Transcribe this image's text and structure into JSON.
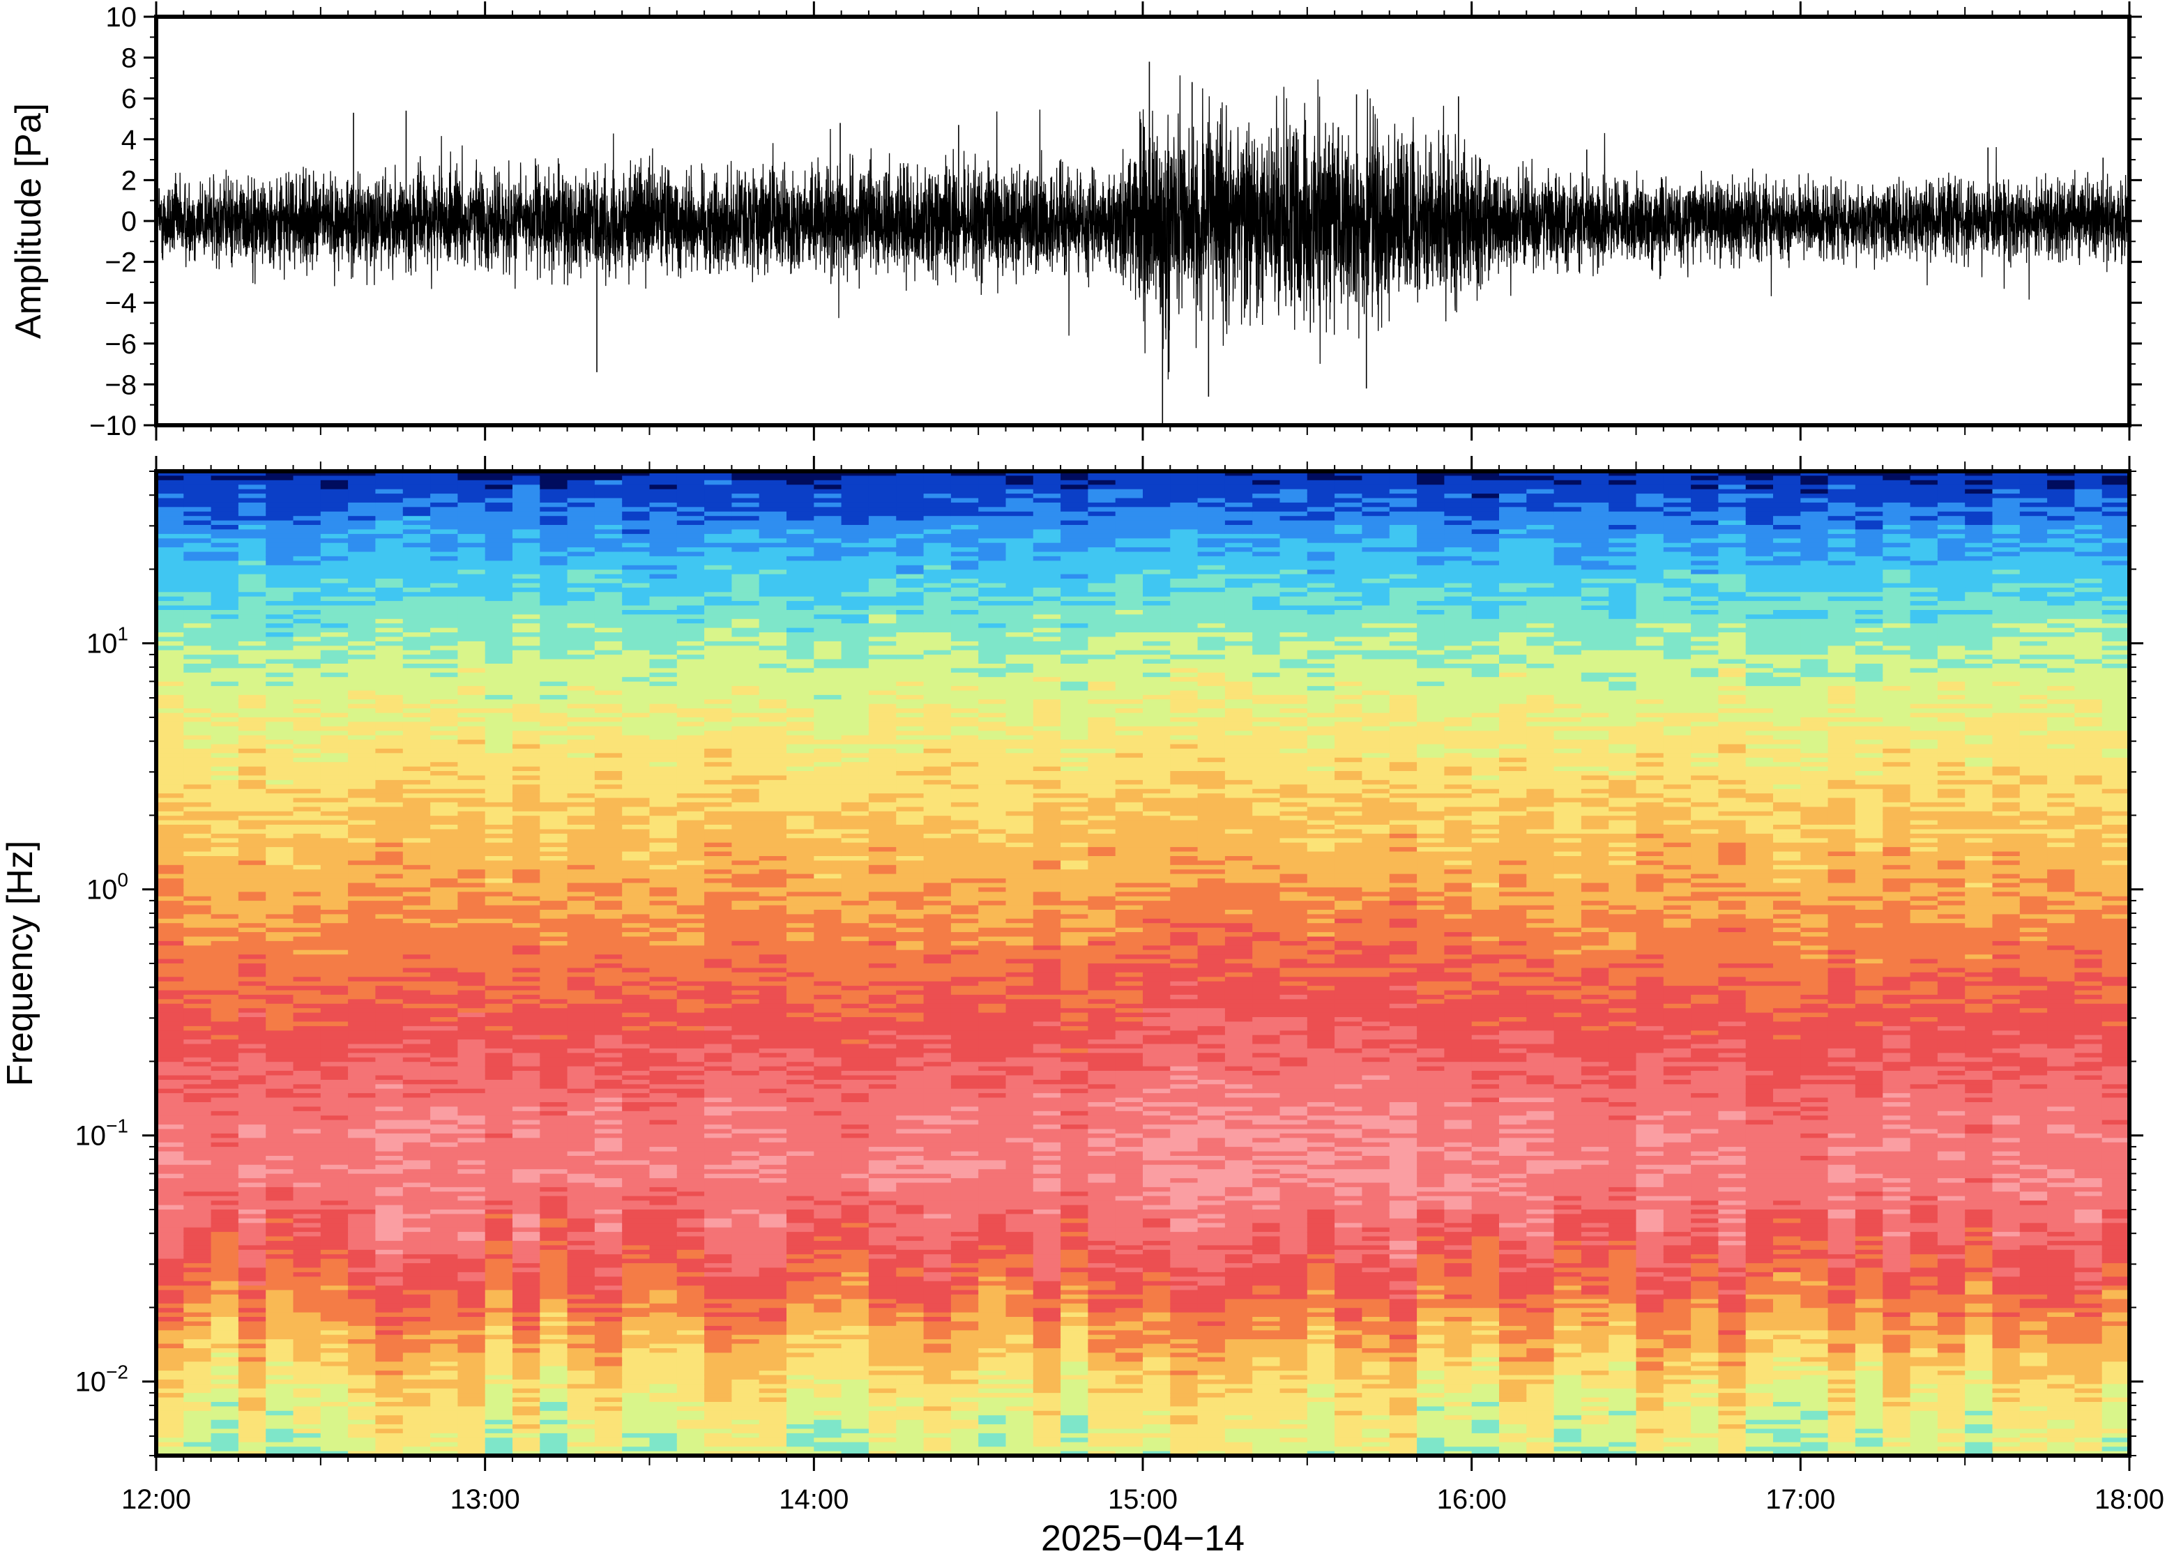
{
  "chart_data": [
    {
      "type": "line",
      "ylabel": "Amplitude [Pa]",
      "ylim": [
        -10,
        10
      ],
      "yticks": [
        {
          "value": 10,
          "label": "10"
        },
        {
          "value": 8,
          "label": "8"
        },
        {
          "value": 6,
          "label": "6"
        },
        {
          "value": 4,
          "label": "4"
        },
        {
          "value": 2,
          "label": "2"
        },
        {
          "value": 0,
          "label": "0"
        },
        {
          "value": -2,
          "label": "−2"
        },
        {
          "value": -4,
          "label": "−4"
        },
        {
          "value": -6,
          "label": "−6"
        },
        {
          "value": -8,
          "label": "−8"
        },
        {
          "value": -10,
          "label": "−10"
        }
      ],
      "x_range_hours": [
        12,
        18
      ],
      "series_color": "#000000",
      "envelope": {
        "hours": [
          12.0,
          12.5,
          13.0,
          13.5,
          14.0,
          14.5,
          14.95,
          15.0,
          15.25,
          15.5,
          15.75,
          16.0,
          16.1,
          16.5,
          17.0,
          17.5,
          18.0
        ],
        "amplitude": [
          1.3,
          1.4,
          1.5,
          1.6,
          1.6,
          1.7,
          1.7,
          3.3,
          3.0,
          3.1,
          3.0,
          2.4,
          1.4,
          1.3,
          1.2,
          1.2,
          1.3
        ]
      },
      "peaks": [
        {
          "hour": 12.6,
          "value": 5.3
        },
        {
          "hour": 12.76,
          "value": 5.4
        },
        {
          "hour": 13.34,
          "value": -7.4
        },
        {
          "hour": 14.08,
          "value": 4.8
        },
        {
          "hour": 14.44,
          "value": 4.7
        },
        {
          "hour": 15.02,
          "value": 7.8
        },
        {
          "hour": 15.06,
          "value": -9.9
        },
        {
          "hour": 15.15,
          "value": 6.8
        },
        {
          "hour": 15.2,
          "value": -8.6
        },
        {
          "hour": 15.65,
          "value": 6.2
        },
        {
          "hour": 15.68,
          "value": -8.2
        },
        {
          "hour": 15.96,
          "value": 6.1
        },
        {
          "hour": 16.35,
          "value": 3.5
        },
        {
          "hour": 17.57,
          "value": 3.6
        },
        {
          "hour": 17.92,
          "value": 3.1
        }
      ]
    },
    {
      "type": "heatmap",
      "ylabel": "Frequency [Hz]",
      "yscale": "log",
      "ylim": [
        0.005,
        50
      ],
      "yticks": [
        {
          "value": 10,
          "base": "10",
          "exp": "1"
        },
        {
          "value": 1,
          "base": "10",
          "exp": "0"
        },
        {
          "value": 0.1,
          "base": "10",
          "exp": "−1"
        },
        {
          "value": 0.01,
          "base": "10",
          "exp": "−2"
        }
      ],
      "x_range_hours": [
        12,
        18
      ],
      "colormap": [
        "#000c5e",
        "#0b3fc7",
        "#2f8ef0",
        "#40c6f2",
        "#7ee6c9",
        "#d9f58a",
        "#fbe377",
        "#f9b954",
        "#f47c46",
        "#ec4f51",
        "#f47375",
        "#fa9ea2"
      ],
      "bands": [
        {
          "freq": 50,
          "level": 0.5
        },
        {
          "freq": 40,
          "level": 1.2
        },
        {
          "freq": 25,
          "level": 2.5
        },
        {
          "freq": 12,
          "level": 4.1
        },
        {
          "freq": 5,
          "level": 5.5
        },
        {
          "freq": 2,
          "level": 6.6
        },
        {
          "freq": 1,
          "level": 7.3
        },
        {
          "freq": 0.5,
          "level": 8.2
        },
        {
          "freq": 0.25,
          "level": 9.1
        },
        {
          "freq": 0.12,
          "level": 10.1
        },
        {
          "freq": 0.07,
          "level": 10.3
        },
        {
          "freq": 0.04,
          "level": 9.6
        },
        {
          "freq": 0.025,
          "level": 8.6
        },
        {
          "freq": 0.015,
          "level": 7.2
        },
        {
          "freq": 0.009,
          "level": 5.9
        },
        {
          "freq": 0.005,
          "level": 5.0
        }
      ]
    }
  ],
  "x_axis": {
    "ticks": [
      {
        "hour": 12,
        "label": "12:00"
      },
      {
        "hour": 13,
        "label": "13:00"
      },
      {
        "hour": 14,
        "label": "14:00"
      },
      {
        "hour": 15,
        "label": "15:00"
      },
      {
        "hour": 16,
        "label": "16:00"
      },
      {
        "hour": 17,
        "label": "17:00"
      },
      {
        "hour": 18,
        "label": "18:00"
      }
    ],
    "label": "2025−04−14"
  }
}
